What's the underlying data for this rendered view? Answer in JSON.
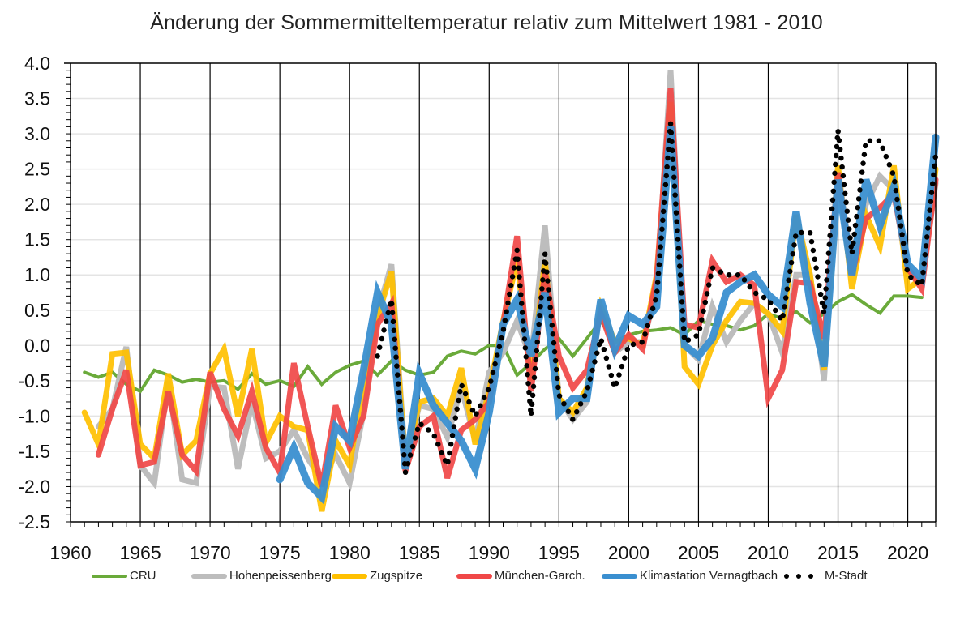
{
  "chart_data": {
    "type": "line",
    "title": "Änderung der Sommermitteltemperatur relativ zum Mittelwert 1981 - 2010",
    "xlabel": "",
    "ylabel": "",
    "xlim": [
      1960,
      2022
    ],
    "ylim": [
      -2.5,
      4.0
    ],
    "grid": true,
    "legend_position": "bottom",
    "x_ticks": [
      "1960",
      "1965",
      "1970",
      "1975",
      "1980",
      "1985",
      "1990",
      "1995",
      "2000",
      "2005",
      "2010",
      "2015",
      "2020"
    ],
    "y_ticks": [
      "4.0",
      "3.5",
      "3.0",
      "2.5",
      "2.0",
      "1.5",
      "1.0",
      "0.5",
      "0.0",
      "-0.5",
      "-1.0",
      "-1.5",
      "-2.0",
      "-2.5"
    ],
    "series": [
      {
        "name": "CRU",
        "color": "#6aaa3a",
        "style": "thin",
        "start_year": 1961,
        "values": [
          -0.38,
          -0.45,
          -0.38,
          -0.55,
          -0.65,
          -0.35,
          -0.42,
          -0.52,
          -0.48,
          -0.52,
          -0.5,
          -0.62,
          -0.4,
          -0.55,
          -0.5,
          -0.58,
          -0.3,
          -0.55,
          -0.38,
          -0.28,
          -0.22,
          -0.42,
          -0.22,
          -0.35,
          -0.42,
          -0.38,
          -0.15,
          -0.08,
          -0.12,
          0.0,
          0.0,
          -0.42,
          -0.25,
          -0.05,
          0.1,
          -0.15,
          0.1,
          0.35,
          0.05,
          0.15,
          0.2,
          0.22,
          0.25,
          0.15,
          0.35,
          0.3,
          0.28,
          0.22,
          0.28,
          0.45,
          0.38,
          0.48,
          0.32,
          0.45,
          0.62,
          0.72,
          0.58,
          0.46,
          0.7,
          0.7,
          0.68
        ]
      },
      {
        "name": "Hohenpeissenberg",
        "color": "#bdbdbd",
        "style": "thick",
        "start_year": 1962,
        "values": [
          -1.15,
          -0.9,
          -0.02,
          -1.7,
          -1.95,
          -0.5,
          -1.9,
          -1.95,
          -0.58,
          -0.6,
          -1.75,
          -0.8,
          -1.6,
          -1.5,
          -1.2,
          -1.6,
          -1.9,
          -1.55,
          -1.95,
          -0.95,
          0.45,
          1.15,
          -1.65,
          -0.85,
          -0.9,
          -1.3,
          -0.6,
          -1.35,
          -0.38,
          -0.1,
          0.35,
          -0.2,
          1.7,
          -0.75,
          -1.05,
          -0.8,
          0.55,
          -0.1,
          0.05,
          0.05,
          0.75,
          3.9,
          0.0,
          -0.2,
          0.55,
          0.05,
          0.35,
          0.6,
          0.45,
          -0.1,
          1.0,
          1.0,
          -0.5,
          2.5,
          1.1,
          2.0,
          2.4,
          2.2,
          1.0,
          0.9,
          2.3
        ]
      },
      {
        "name": "Zugspitze",
        "color": "#ffc000",
        "style": "thick",
        "start_year": 1961,
        "values": [
          -0.95,
          -1.4,
          -0.12,
          -0.1,
          -1.4,
          -1.6,
          -0.4,
          -1.55,
          -1.35,
          -0.4,
          -0.05,
          -1.0,
          -0.05,
          -1.38,
          -1.0,
          -1.15,
          -1.2,
          -2.35,
          -1.35,
          -1.7,
          -0.5,
          0.4,
          1.05,
          -1.7,
          -0.8,
          -0.75,
          -1.0,
          -0.32,
          -1.4,
          -0.65,
          0.35,
          1.2,
          -0.5,
          1.2,
          -0.75,
          -0.95,
          -0.6,
          0.55,
          0.05,
          0.1,
          0.0,
          1.0,
          3.45,
          -0.3,
          -0.55,
          0.0,
          0.35,
          0.62,
          0.6,
          0.45,
          0.2,
          1.85,
          1.0,
          -0.35,
          2.55,
          0.8,
          1.85,
          1.4,
          2.55,
          0.8,
          0.95,
          2.5
        ]
      },
      {
        "name": "München-Garch.",
        "color": "#f04848",
        "style": "thick",
        "start_year": 1962,
        "values": [
          -1.55,
          -0.9,
          -0.35,
          -1.7,
          -1.65,
          -0.65,
          -1.55,
          -1.78,
          -0.38,
          -0.9,
          -1.28,
          -0.65,
          -1.45,
          -1.8,
          -0.25,
          -1.15,
          -2.0,
          -0.85,
          -1.45,
          -1.0,
          0.3,
          0.6,
          -1.78,
          -1.15,
          -1.0,
          -1.88,
          -1.2,
          -1.05,
          -0.8,
          0.3,
          1.55,
          -0.65,
          1.05,
          -0.15,
          -0.6,
          -0.35,
          0.45,
          -0.1,
          0.15,
          -0.05,
          0.95,
          3.65,
          0.3,
          0.25,
          1.2,
          0.9,
          1.0,
          0.85,
          -0.75,
          -0.35,
          0.9,
          0.88,
          0.1,
          2.45,
          1.0,
          1.8,
          1.95,
          2.15,
          1.1,
          0.8,
          2.35
        ]
      },
      {
        "name": "Klimastation Vernagtbach",
        "color": "#3a8fd0",
        "style": "extra-thick",
        "start_year": 1975,
        "values": [
          -1.9,
          -1.45,
          -1.95,
          -2.15,
          -1.15,
          -1.35,
          -0.35,
          0.75,
          0.3,
          -1.75,
          -0.4,
          -0.85,
          -1.1,
          -1.35,
          -1.75,
          -0.95,
          0.3,
          0.65,
          -0.15,
          0.75,
          -0.95,
          -0.75,
          -0.75,
          0.65,
          -0.05,
          0.42,
          0.3,
          0.55,
          3.1,
          0.0,
          -0.15,
          0.1,
          0.75,
          0.9,
          1.0,
          0.72,
          0.55,
          1.9,
          0.6,
          -0.3,
          2.35,
          1.0,
          2.35,
          1.7,
          2.25,
          1.15,
          0.95,
          2.95
        ]
      },
      {
        "name": "M-Stadt",
        "color": "#000000",
        "style": "dotted",
        "start_year": 1982,
        "values": [
          -0.15,
          0.65,
          -1.8,
          -1.1,
          -1.25,
          -1.7,
          -0.55,
          -1.0,
          -0.6,
          0.2,
          1.35,
          -1.0,
          1.3,
          -0.7,
          -1.05,
          -0.65,
          0.1,
          -0.6,
          0.0,
          0.05,
          0.7,
          3.15,
          0.05,
          0.15,
          1.1,
          1.0,
          1.0,
          0.75,
          0.65,
          0.35,
          1.6,
          1.6,
          0.45,
          3.05,
          1.3,
          2.9,
          2.9,
          2.4,
          1.0,
          0.85,
          2.7
        ]
      }
    ]
  }
}
